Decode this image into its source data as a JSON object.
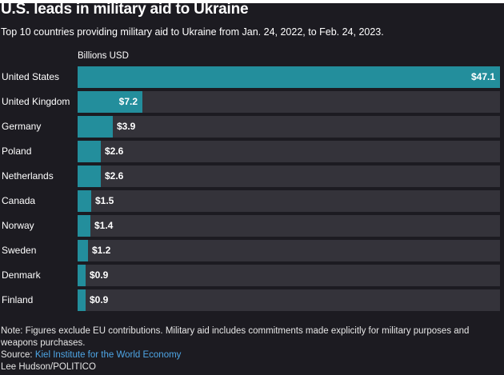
{
  "header": {
    "title": "U.S. leads in military aid to Ukraine",
    "subtitle": "Top 10 countries providing military aid to Ukraine from Jan. 24, 2022, to Feb. 24, 2023."
  },
  "colors": {
    "background": "#1c1b21",
    "bar": "#238e9c",
    "track": "#34333a",
    "link": "#4ea6e6"
  },
  "chart_data": {
    "type": "bar",
    "orientation": "horizontal",
    "title": "U.S. leads in military aid to Ukraine",
    "subtitle": "Top 10 countries providing military aid to Ukraine from Jan. 24, 2022, to Feb. 24, 2023.",
    "xlabel": "Billions USD",
    "ylabel": "",
    "xlim": [
      0,
      47.1
    ],
    "grid": false,
    "legend": "none",
    "categories": [
      "United States",
      "United Kingdom",
      "Germany",
      "Poland",
      "Netherlands",
      "Canada",
      "Norway",
      "Sweden",
      "Denmark",
      "Finland"
    ],
    "values": [
      47.1,
      7.2,
      3.9,
      2.6,
      2.6,
      1.5,
      1.4,
      1.2,
      0.9,
      0.9
    ],
    "value_labels": [
      "$47.1",
      "$7.2",
      "$3.9",
      "$2.6",
      "$2.6",
      "$1.5",
      "$1.4",
      "$1.2",
      "$0.9",
      "$0.9"
    ]
  },
  "footer": {
    "note": "Note: Figures exclude EU contributions. Military aid includes commitments made explicitly for military purposes and weapons purchases.",
    "source_prefix": "Source: ",
    "source_link": "Kiel Institute for the World Economy",
    "credit": "Lee Hudson/POLITICO"
  }
}
